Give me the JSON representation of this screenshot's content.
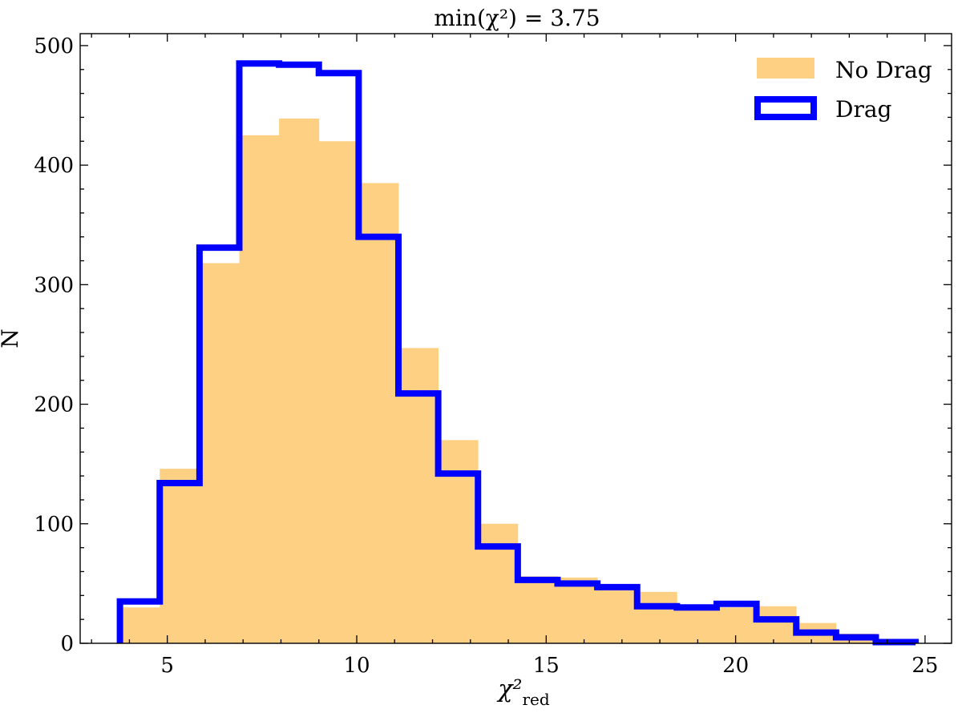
{
  "chart_data": {
    "type": "bar",
    "title": "min(χ²) = 3.75",
    "xlabel": "χ²",
    "xlabel_sub": "red",
    "ylabel": "N",
    "xlim": [
      2.7,
      25.7
    ],
    "ylim": [
      0,
      510
    ],
    "xticks": [
      5,
      10,
      15,
      20,
      25
    ],
    "yticks": [
      0,
      100,
      200,
      300,
      400,
      500
    ],
    "grid": false,
    "legend_placement": "top-right",
    "bin_edges": [
      3.75,
      4.8,
      5.85,
      6.9,
      7.95,
      9.0,
      10.05,
      11.1,
      12.15,
      13.2,
      14.25,
      15.3,
      16.35,
      17.4,
      18.45,
      19.5,
      20.55,
      21.6,
      22.65,
      23.7,
      24.75
    ],
    "series": [
      {
        "name": "No Drag",
        "style": "filled",
        "color": "#fdd084",
        "values": [
          30,
          146,
          318,
          425,
          439,
          420,
          385,
          247,
          170,
          100,
          56,
          55,
          47,
          43,
          30,
          30,
          31,
          17,
          8,
          2
        ]
      },
      {
        "name": "Drag",
        "style": "step",
        "color": "#0000ff",
        "values": [
          35,
          134,
          331,
          485,
          484,
          477,
          340,
          209,
          142,
          81,
          53,
          50,
          47,
          31,
          30,
          33,
          20,
          9,
          5,
          1
        ]
      }
    ]
  }
}
